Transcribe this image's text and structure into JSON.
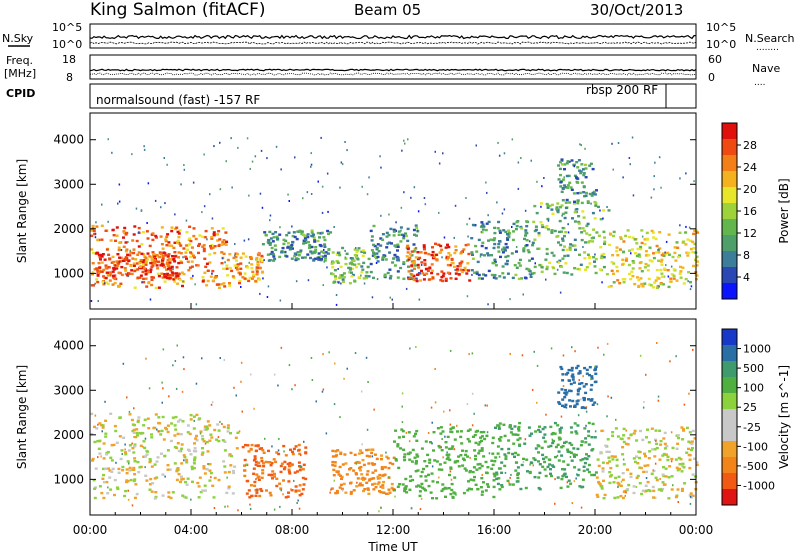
{
  "header": {
    "station": "King Salmon (fitACF)",
    "beam": "Beam 05",
    "date": "30/Oct/2013"
  },
  "side_labels": {
    "nsky": "N.Sky",
    "freq_top": "Freq.",
    "freq_unit": "[MHz]",
    "cpid": "CPID",
    "nsearch": "N.Search",
    "nsearch_dots": "........",
    "nave": "Nave",
    "nave_dots": "...."
  },
  "strip_ticks": {
    "noise_left": [
      "10^5",
      "10^0"
    ],
    "noise_right": [
      "10^5",
      "10^0"
    ],
    "freq_left": [
      "18",
      "8"
    ],
    "nave_right": [
      "60",
      "0"
    ]
  },
  "cpid_text": {
    "left": "normalsound (fast) -157 RF",
    "right": "rbsp 200 RF"
  },
  "colors": {
    "power": [
      "#0a14ff",
      "#2a47b4",
      "#3c7d9a",
      "#4f9f6a",
      "#62b64d",
      "#9ed23a",
      "#e8e62a",
      "#f4b21e",
      "#f47f18",
      "#ef4a12",
      "#e0100c"
    ],
    "velocity": [
      "#e11414",
      "#f25a14",
      "#f2841a",
      "#f0a22a",
      "#c8c8c8",
      "#c8c8c8",
      "#8bd23c",
      "#4fb040",
      "#3f9b6e",
      "#2a6ea6",
      "#1838c8"
    ]
  },
  "chart_data": [
    {
      "type": "heatmap",
      "panel": "power",
      "ylabel": "Slant Range [km]",
      "y_ticks": [
        1000,
        2000,
        3000,
        4000
      ],
      "ylim": [
        200,
        4600
      ],
      "xlim": [
        0,
        24
      ],
      "x_ticks": [
        "00:00",
        "04:00",
        "08:00",
        "12:00",
        "16:00",
        "20:00",
        "00:00"
      ],
      "colorbar": {
        "label": "Power [dB]",
        "ticks": [
          "4",
          "8",
          "12",
          "16",
          "20",
          "24",
          "28"
        ],
        "range": [
          0,
          30
        ]
      },
      "regions": [
        {
          "t0": 0.0,
          "t1": 5.5,
          "r0": 700,
          "r1": 2100,
          "value": 24
        },
        {
          "t0": 0.2,
          "t1": 3.5,
          "r0": 900,
          "r1": 1500,
          "value": 28
        },
        {
          "t0": 5.5,
          "t1": 6.8,
          "r0": 800,
          "r1": 1500,
          "value": 22
        },
        {
          "t0": 6.8,
          "t1": 9.5,
          "r0": 1300,
          "r1": 2000,
          "value": 8
        },
        {
          "t0": 9.5,
          "t1": 11.0,
          "r0": 800,
          "r1": 1600,
          "value": 12
        },
        {
          "t0": 11.0,
          "t1": 13.0,
          "r0": 900,
          "r1": 2100,
          "value": 8
        },
        {
          "t0": 12.5,
          "t1": 15.0,
          "r0": 850,
          "r1": 1700,
          "value": 26
        },
        {
          "t0": 15.0,
          "t1": 17.5,
          "r0": 900,
          "r1": 2200,
          "value": 8
        },
        {
          "t0": 17.5,
          "t1": 20.5,
          "r0": 1000,
          "r1": 2600,
          "value": 12
        },
        {
          "t0": 18.5,
          "t1": 20.0,
          "r0": 2600,
          "r1": 3600,
          "value": 8
        },
        {
          "t0": 20.5,
          "t1": 24.0,
          "r0": 700,
          "r1": 2000,
          "value": 18
        }
      ]
    },
    {
      "type": "heatmap",
      "panel": "velocity",
      "ylabel": "Slant Range [km]",
      "xlabel": "Time UT",
      "y_ticks": [
        1000,
        2000,
        3000,
        4000
      ],
      "ylim": [
        200,
        4600
      ],
      "xlim": [
        0,
        24
      ],
      "x_ticks": [
        "00:00",
        "04:00",
        "08:00",
        "12:00",
        "16:00",
        "20:00",
        "00:00"
      ],
      "colorbar": {
        "label": "Velocity [m s^-1]",
        "ticks": [
          "1000",
          "500",
          "100",
          "25",
          "-25",
          "-100",
          "-500",
          "-1000"
        ]
      },
      "regions": [
        {
          "t0": 0.0,
          "t1": 5.8,
          "r0": 600,
          "r1": 2500,
          "value": 0
        },
        {
          "t0": 6.0,
          "t1": 8.5,
          "r0": 600,
          "r1": 1800,
          "value": -300
        },
        {
          "t0": 9.5,
          "t1": 12.0,
          "r0": 700,
          "r1": 1700,
          "value": -150
        },
        {
          "t0": 12.0,
          "t1": 16.0,
          "r0": 600,
          "r1": 2200,
          "value": 200
        },
        {
          "t0": 16.0,
          "t1": 20.0,
          "r0": 800,
          "r1": 2300,
          "value": 300
        },
        {
          "t0": 18.5,
          "t1": 20.0,
          "r0": 2600,
          "r1": 3600,
          "value": 600
        },
        {
          "t0": 20.0,
          "t1": 24.0,
          "r0": 600,
          "r1": 2200,
          "value": 0
        }
      ]
    }
  ]
}
